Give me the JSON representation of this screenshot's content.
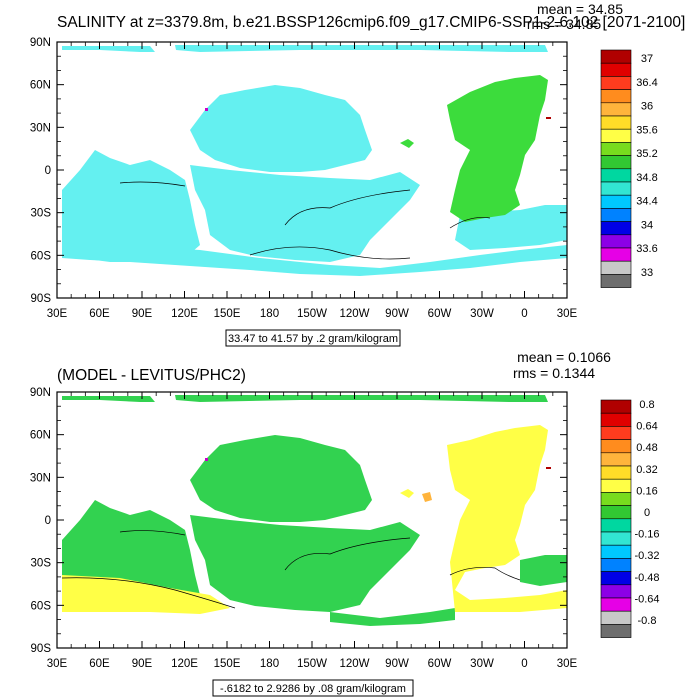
{
  "chart_data": [
    {
      "type": "heatmap",
      "title": "SALINITY at z=3379.8m, b.e21.BSSP126cmip6.f09_g17.CMIP6-SSP1-2.6.102 [2071-2100]",
      "stats": {
        "mean": "mean = 34.85",
        "rms": "rms = 34.85"
      },
      "x_ticks": [
        "30E",
        "60E",
        "90E",
        "120E",
        "150E",
        "180",
        "150W",
        "120W",
        "90W",
        "60W",
        "30W",
        "0",
        "30E"
      ],
      "y_ticks": [
        "90N",
        "60N",
        "30N",
        "0",
        "30S",
        "60S",
        "90S"
      ],
      "info": "33.47 to 41.57 by .2 gram/kilogram",
      "colorbar": {
        "labels": [
          "37",
          "36.4",
          "36",
          "35.6",
          "35.2",
          "34.8",
          "34.4",
          "34",
          "33.6",
          "33"
        ],
        "colors": [
          "#b00000",
          "#e00000",
          "#ff3c1e",
          "#ff8c1e",
          "#ffb43c",
          "#ffdc28",
          "#ffff46",
          "#78dc1e",
          "#32c832",
          "#00d7a0",
          "#32e6d2",
          "#00c8ff",
          "#0082ff",
          "#0000e6",
          "#8c00e6",
          "#e600e6",
          "#c8c8c8",
          "#6e6e6e"
        ]
      },
      "fields": {
        "ocean": "#64f0f0",
        "atlantic": "#3cdc3c",
        "marginal_sea": "#ffe646",
        "dot": "#c800c8"
      }
    },
    {
      "type": "heatmap",
      "title": "(MODEL - LEVITUS/PHC2)",
      "stats": {
        "mean": "mean = 0.1066",
        "rms": "rms = 0.1344"
      },
      "x_ticks": [
        "30E",
        "60E",
        "90E",
        "120E",
        "150E",
        "180",
        "150W",
        "120W",
        "90W",
        "60W",
        "30W",
        "0",
        "30E"
      ],
      "y_ticks": [
        "90N",
        "60N",
        "30N",
        "0",
        "30S",
        "60S",
        "90S"
      ],
      "info": "-.6182 to 2.9286 by .08 gram/kilogram",
      "colorbar": {
        "labels": [
          "0.8",
          "0.64",
          "0.48",
          "0.32",
          "0.16",
          "0",
          "-0.16",
          "-0.32",
          "-0.48",
          "-0.64",
          "-0.8"
        ],
        "colors": [
          "#b00000",
          "#e00000",
          "#ff3c1e",
          "#ff8c1e",
          "#ffb43c",
          "#ffdc28",
          "#ffff46",
          "#78dc1e",
          "#32c832",
          "#00d7a0",
          "#32e6d2",
          "#00c8ff",
          "#0082ff",
          "#0000e6",
          "#8c00e6",
          "#e600e6",
          "#c8c8c8",
          "#6e6e6e"
        ]
      },
      "fields": {
        "pacific": "#32d250",
        "atlantic": "#ffff46",
        "southern": "#ffff46",
        "dot": "#c800c8"
      }
    }
  ]
}
